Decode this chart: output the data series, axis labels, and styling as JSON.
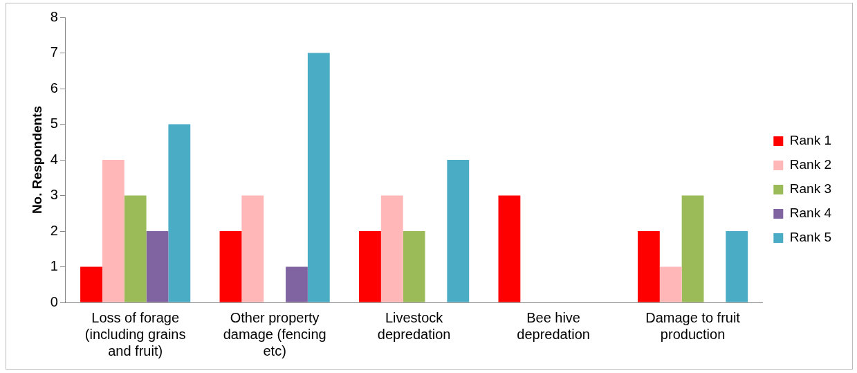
{
  "chart_data": {
    "type": "bar",
    "ylabel": "No. Respondents",
    "categories": [
      "Loss of forage (including grains and fruit)",
      "Other property damage (fencing etc)",
      "Livestock depredation",
      "Bee hive depredation",
      "Damage to fruit production"
    ],
    "series": [
      {
        "name": "Rank 1",
        "color": "#ff0000",
        "values": [
          1,
          2,
          2,
          3,
          2
        ]
      },
      {
        "name": "Rank 2",
        "color": "#ffb7b7",
        "values": [
          4,
          3,
          3,
          0,
          1
        ]
      },
      {
        "name": "Rank 3",
        "color": "#9bbb59",
        "values": [
          3,
          0,
          2,
          0,
          3
        ]
      },
      {
        "name": "Rank 4",
        "color": "#8064a2",
        "values": [
          2,
          1,
          0,
          0,
          0
        ]
      },
      {
        "name": "Rank 5",
        "color": "#4bacc6",
        "values": [
          5,
          7,
          4,
          0,
          2
        ]
      }
    ],
    "ylim": [
      0,
      8
    ],
    "yticks": [
      0,
      1,
      2,
      3,
      4,
      5,
      6,
      7,
      8
    ],
    "grid": false,
    "legend": "right"
  }
}
